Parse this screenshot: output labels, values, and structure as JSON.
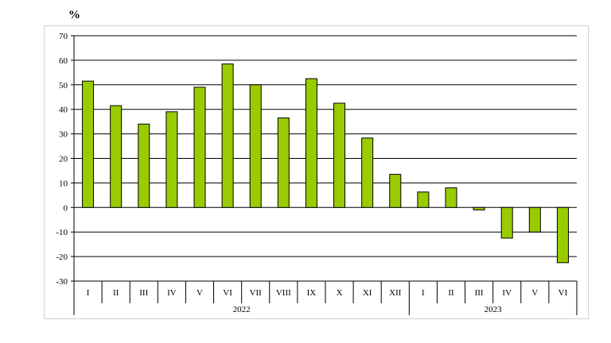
{
  "chart_data": {
    "type": "bar",
    "unit_label": "%",
    "ylim": [
      -30,
      70
    ],
    "yticks": [
      -30,
      -20,
      -10,
      0,
      10,
      20,
      30,
      40,
      50,
      60,
      70
    ],
    "grid": true,
    "categories": [
      "I",
      "II",
      "III",
      "IV",
      "V",
      "VI",
      "VII",
      "VIII",
      "IX",
      "X",
      "XI",
      "XII",
      "I",
      "II",
      "III",
      "IV",
      "V",
      "VI"
    ],
    "groups": [
      {
        "label": "2022",
        "count": 12
      },
      {
        "label": "2023",
        "count": 6
      }
    ],
    "values": [
      51.5,
      41.5,
      34,
      39,
      49,
      58.5,
      50,
      36.5,
      52.5,
      42.5,
      28.3,
      13.5,
      6.3,
      8,
      -1,
      -12.5,
      -10,
      -22.5
    ],
    "colors": {
      "bar": "#99cc00",
      "bar_stroke": "#000000",
      "grid": "#000000",
      "axis": "#000000"
    }
  }
}
